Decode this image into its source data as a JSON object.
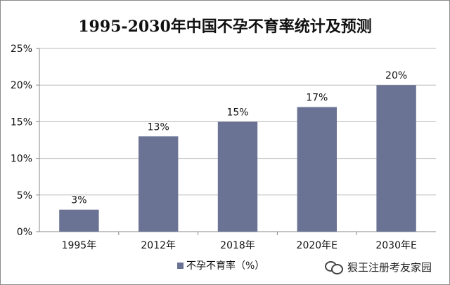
{
  "chart_data": {
    "type": "bar",
    "title": "1995-2030年中国不孕不育率统计及预测",
    "categories": [
      "1995年",
      "2012年",
      "2018年",
      "2020年E",
      "2030年E"
    ],
    "series": [
      {
        "name": "不孕不育率（%）",
        "values": [
          3,
          13,
          15,
          17,
          20
        ]
      }
    ],
    "data_labels": [
      "3%",
      "13%",
      "15%",
      "17%",
      "20%"
    ],
    "y_ticks": [
      "0%",
      "5%",
      "10%",
      "15%",
      "20%",
      "25%"
    ],
    "ylim": [
      0,
      25
    ],
    "grid": true,
    "legend_position": "bottom-left",
    "colors": {
      "bar": "#6b7394",
      "grid": "#b8b8b8",
      "axis": "#888888",
      "text": "#111111"
    }
  },
  "watermark": {
    "text": "狠王注册考友家园"
  }
}
